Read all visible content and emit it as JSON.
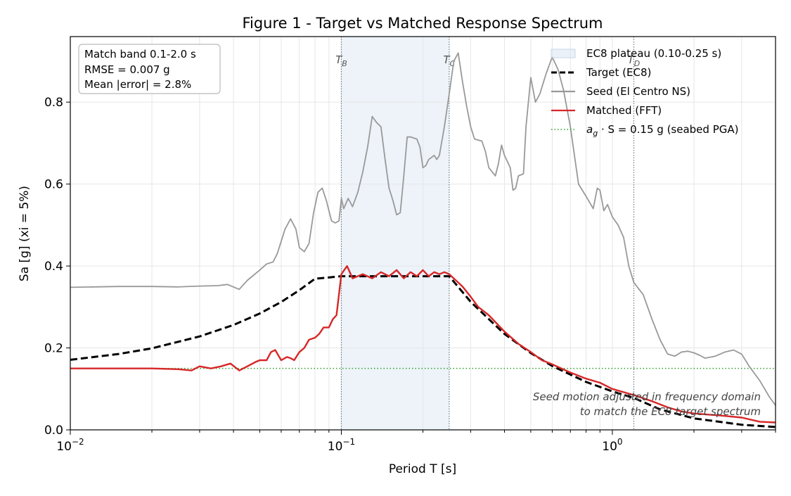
{
  "title": "Figure 1 - Target vs Matched Response Spectrum",
  "chart_data": {
    "type": "line",
    "xscale": "log",
    "xlim": [
      0.01,
      4.0
    ],
    "ylim": [
      0.0,
      0.96
    ],
    "xlabel": "Period T [s]",
    "ylabel": "Sa [g]   (xi = 5%)",
    "x_ticks": [
      {
        "value": 0.01,
        "base": "10",
        "exp": "−2"
      },
      {
        "value": 0.1,
        "base": "10",
        "exp": "−1"
      },
      {
        "value": 1.0,
        "base": "10",
        "exp": "0"
      }
    ],
    "y_ticks": [
      "0.0",
      "0.2",
      "0.4",
      "0.6",
      "0.8"
    ],
    "y_tick_values": [
      0.0,
      0.2,
      0.4,
      0.6,
      0.8
    ],
    "grid": true,
    "legend_position": "top-right",
    "plateau": {
      "name": "EC8 plateau (0.10-0.25 s)",
      "x0": 0.1,
      "x1": 0.25,
      "color": "#dce8f3"
    },
    "corner_periods": [
      {
        "label": "T",
        "sub": "B",
        "value": 0.1
      },
      {
        "label": "T",
        "sub": "C",
        "value": 0.25
      },
      {
        "label": "T",
        "sub": "D",
        "value": 1.2
      }
    ],
    "reference_line": {
      "legend_prefix": "a",
      "legend_sub": "g",
      "legend_suffix": "· S = 0.15 g  (seabed PGA)",
      "value": 0.15,
      "color": "#2ca02c"
    },
    "series": [
      {
        "name": "Target (EC8)",
        "color": "#000000",
        "style": "dashed",
        "points": [
          [
            0.01,
            0.171
          ],
          [
            0.015,
            0.185
          ],
          [
            0.02,
            0.199
          ],
          [
            0.03,
            0.228
          ],
          [
            0.04,
            0.256
          ],
          [
            0.05,
            0.284
          ],
          [
            0.06,
            0.312
          ],
          [
            0.07,
            0.341
          ],
          [
            0.08,
            0.369
          ],
          [
            0.09,
            0.372
          ],
          [
            0.1,
            0.375
          ],
          [
            0.25,
            0.375
          ],
          [
            0.3,
            0.3125
          ],
          [
            0.4,
            0.234
          ],
          [
            0.5,
            0.1875
          ],
          [
            0.6,
            0.156
          ],
          [
            0.8,
            0.117
          ],
          [
            1.0,
            0.094
          ],
          [
            1.2,
            0.078
          ],
          [
            1.5,
            0.05
          ],
          [
            2.0,
            0.028
          ],
          [
            3.0,
            0.0125
          ],
          [
            4.0,
            0.007
          ]
        ]
      },
      {
        "name": "Seed (El Centro NS)",
        "color": "#999999",
        "style": "solid",
        "points": [
          [
            0.01,
            0.348
          ],
          [
            0.015,
            0.35
          ],
          [
            0.02,
            0.35
          ],
          [
            0.025,
            0.349
          ],
          [
            0.03,
            0.351
          ],
          [
            0.035,
            0.352
          ],
          [
            0.038,
            0.355
          ],
          [
            0.042,
            0.343
          ],
          [
            0.045,
            0.365
          ],
          [
            0.05,
            0.39
          ],
          [
            0.053,
            0.405
          ],
          [
            0.056,
            0.41
          ],
          [
            0.058,
            0.43
          ],
          [
            0.062,
            0.49
          ],
          [
            0.065,
            0.515
          ],
          [
            0.068,
            0.49
          ],
          [
            0.07,
            0.445
          ],
          [
            0.073,
            0.435
          ],
          [
            0.076,
            0.455
          ],
          [
            0.079,
            0.53
          ],
          [
            0.082,
            0.58
          ],
          [
            0.085,
            0.59
          ],
          [
            0.088,
            0.56
          ],
          [
            0.092,
            0.51
          ],
          [
            0.095,
            0.505
          ],
          [
            0.098,
            0.51
          ],
          [
            0.1,
            0.565
          ],
          [
            0.102,
            0.54
          ],
          [
            0.106,
            0.565
          ],
          [
            0.11,
            0.545
          ],
          [
            0.115,
            0.58
          ],
          [
            0.12,
            0.63
          ],
          [
            0.125,
            0.69
          ],
          [
            0.13,
            0.765
          ],
          [
            0.135,
            0.75
          ],
          [
            0.14,
            0.74
          ],
          [
            0.145,
            0.66
          ],
          [
            0.15,
            0.59
          ],
          [
            0.155,
            0.56
          ],
          [
            0.16,
            0.525
          ],
          [
            0.165,
            0.53
          ],
          [
            0.17,
            0.62
          ],
          [
            0.175,
            0.715
          ],
          [
            0.18,
            0.715
          ],
          [
            0.19,
            0.71
          ],
          [
            0.195,
            0.69
          ],
          [
            0.2,
            0.64
          ],
          [
            0.205,
            0.645
          ],
          [
            0.21,
            0.66
          ],
          [
            0.22,
            0.67
          ],
          [
            0.225,
            0.66
          ],
          [
            0.23,
            0.67
          ],
          [
            0.24,
            0.74
          ],
          [
            0.25,
            0.82
          ],
          [
            0.26,
            0.9
          ],
          [
            0.27,
            0.92
          ],
          [
            0.28,
            0.85
          ],
          [
            0.29,
            0.79
          ],
          [
            0.3,
            0.74
          ],
          [
            0.31,
            0.71
          ],
          [
            0.33,
            0.705
          ],
          [
            0.34,
            0.68
          ],
          [
            0.35,
            0.64
          ],
          [
            0.37,
            0.62
          ],
          [
            0.38,
            0.65
          ],
          [
            0.39,
            0.695
          ],
          [
            0.4,
            0.67
          ],
          [
            0.42,
            0.64
          ],
          [
            0.43,
            0.585
          ],
          [
            0.44,
            0.59
          ],
          [
            0.45,
            0.62
          ],
          [
            0.47,
            0.625
          ],
          [
            0.48,
            0.74
          ],
          [
            0.5,
            0.86
          ],
          [
            0.52,
            0.8
          ],
          [
            0.54,
            0.82
          ],
          [
            0.57,
            0.87
          ],
          [
            0.6,
            0.91
          ],
          [
            0.63,
            0.88
          ],
          [
            0.66,
            0.83
          ],
          [
            0.7,
            0.74
          ],
          [
            0.75,
            0.6
          ],
          [
            0.8,
            0.57
          ],
          [
            0.85,
            0.54
          ],
          [
            0.88,
            0.59
          ],
          [
            0.9,
            0.585
          ],
          [
            0.93,
            0.535
          ],
          [
            0.96,
            0.55
          ],
          [
            1.0,
            0.52
          ],
          [
            1.05,
            0.5
          ],
          [
            1.1,
            0.47
          ],
          [
            1.15,
            0.4
          ],
          [
            1.2,
            0.36
          ],
          [
            1.3,
            0.33
          ],
          [
            1.4,
            0.27
          ],
          [
            1.5,
            0.22
          ],
          [
            1.6,
            0.185
          ],
          [
            1.7,
            0.18
          ],
          [
            1.8,
            0.19
          ],
          [
            1.9,
            0.192
          ],
          [
            2.0,
            0.188
          ],
          [
            2.1,
            0.182
          ],
          [
            2.2,
            0.175
          ],
          [
            2.4,
            0.18
          ],
          [
            2.6,
            0.19
          ],
          [
            2.8,
            0.195
          ],
          [
            3.0,
            0.185
          ],
          [
            3.2,
            0.155
          ],
          [
            3.5,
            0.12
          ],
          [
            3.8,
            0.08
          ],
          [
            4.0,
            0.06
          ]
        ]
      },
      {
        "name": "Matched (FFT)",
        "color": "#d62728",
        "style": "solid",
        "points": [
          [
            0.01,
            0.15
          ],
          [
            0.02,
            0.15
          ],
          [
            0.025,
            0.148
          ],
          [
            0.028,
            0.145
          ],
          [
            0.03,
            0.155
          ],
          [
            0.033,
            0.15
          ],
          [
            0.036,
            0.155
          ],
          [
            0.039,
            0.162
          ],
          [
            0.042,
            0.145
          ],
          [
            0.045,
            0.155
          ],
          [
            0.048,
            0.165
          ],
          [
            0.05,
            0.17
          ],
          [
            0.053,
            0.17
          ],
          [
            0.055,
            0.19
          ],
          [
            0.057,
            0.195
          ],
          [
            0.06,
            0.17
          ],
          [
            0.063,
            0.178
          ],
          [
            0.065,
            0.175
          ],
          [
            0.067,
            0.17
          ],
          [
            0.07,
            0.19
          ],
          [
            0.073,
            0.2
          ],
          [
            0.076,
            0.22
          ],
          [
            0.08,
            0.225
          ],
          [
            0.083,
            0.235
          ],
          [
            0.086,
            0.25
          ],
          [
            0.09,
            0.25
          ],
          [
            0.093,
            0.27
          ],
          [
            0.096,
            0.28
          ],
          [
            0.1,
            0.38
          ],
          [
            0.105,
            0.4
          ],
          [
            0.11,
            0.37
          ],
          [
            0.12,
            0.38
          ],
          [
            0.13,
            0.37
          ],
          [
            0.14,
            0.385
          ],
          [
            0.15,
            0.375
          ],
          [
            0.16,
            0.39
          ],
          [
            0.17,
            0.37
          ],
          [
            0.18,
            0.385
          ],
          [
            0.19,
            0.375
          ],
          [
            0.2,
            0.39
          ],
          [
            0.21,
            0.375
          ],
          [
            0.22,
            0.385
          ],
          [
            0.23,
            0.38
          ],
          [
            0.24,
            0.385
          ],
          [
            0.25,
            0.38
          ],
          [
            0.28,
            0.35
          ],
          [
            0.3,
            0.325
          ],
          [
            0.32,
            0.3
          ],
          [
            0.35,
            0.28
          ],
          [
            0.4,
            0.24
          ],
          [
            0.45,
            0.21
          ],
          [
            0.5,
            0.19
          ],
          [
            0.55,
            0.17
          ],
          [
            0.6,
            0.16
          ],
          [
            0.7,
            0.14
          ],
          [
            0.8,
            0.125
          ],
          [
            0.9,
            0.115
          ],
          [
            1.0,
            0.1
          ],
          [
            1.2,
            0.085
          ],
          [
            1.4,
            0.07
          ],
          [
            1.6,
            0.055
          ],
          [
            1.8,
            0.045
          ],
          [
            2.0,
            0.04
          ],
          [
            2.5,
            0.035
          ],
          [
            3.0,
            0.03
          ],
          [
            3.5,
            0.02
          ],
          [
            4.0,
            0.018
          ]
        ]
      }
    ]
  },
  "stats_box": [
    "Match band 0.1-2.0 s",
    "RMSE = 0.007 g",
    "Mean |error| = 2.8%"
  ],
  "annotation": [
    "Seed motion adjusted in frequency domain",
    "to match the EC8 target spectrum"
  ]
}
